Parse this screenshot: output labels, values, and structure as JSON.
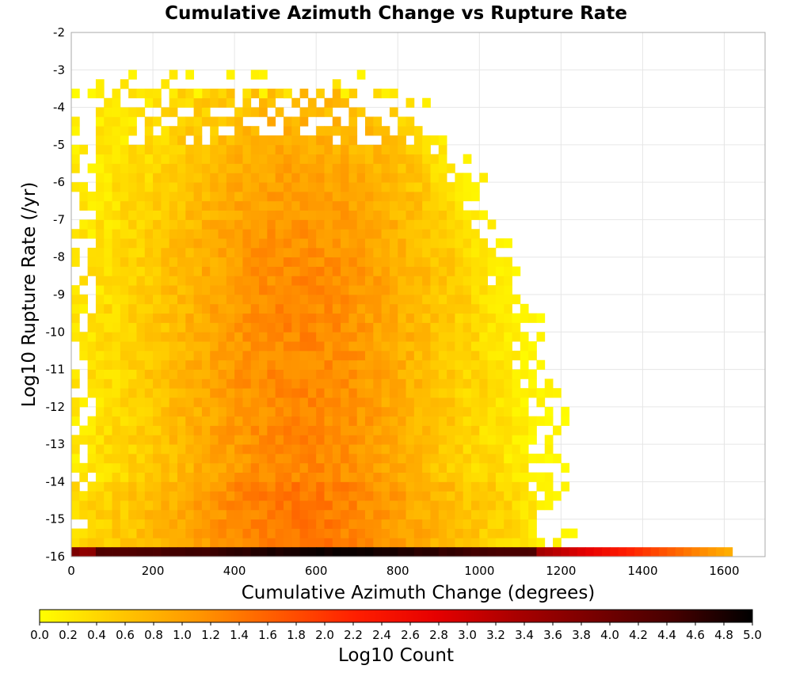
{
  "chart_data": {
    "type": "heatmap",
    "title": "Cumulative Azimuth Change vs Rupture Rate",
    "xlabel": "Cumulative Azimuth Change (degrees)",
    "ylabel": "Log10 Rupture Rate (/yr)",
    "xlim": [
      0,
      1700
    ],
    "ylim": [
      -16,
      -2
    ],
    "x_ticks": [
      "0",
      "200",
      "400",
      "600",
      "800",
      "1000",
      "1200",
      "1400",
      "1600"
    ],
    "y_ticks": [
      "-2",
      "-3",
      "-4",
      "-5",
      "-6",
      "-7",
      "-8",
      "-9",
      "-10",
      "-11",
      "-12",
      "-13",
      "-14",
      "-15",
      "-16"
    ],
    "grid": true,
    "bin_width_x": 20,
    "bin_height_y": 0.25,
    "colorbar": {
      "label": "Log10 Count",
      "range": [
        0,
        5
      ],
      "ticks": [
        "0.0",
        "0.2",
        "0.4",
        "0.6",
        "0.8",
        "1.0",
        "1.2",
        "1.4",
        "1.6",
        "1.8",
        "2.0",
        "2.2",
        "2.4",
        "2.6",
        "2.8",
        "3.0",
        "3.2",
        "3.4",
        "3.6",
        "3.8",
        "4.0",
        "4.2",
        "4.4",
        "4.6",
        "4.8",
        "5.0"
      ],
      "colors": [
        "#ffff00",
        "#ffc800",
        "#ff9600",
        "#ff5a00",
        "#ff1e00",
        "#e60000",
        "#aa0000",
        "#780000",
        "#460000",
        "#000000"
      ]
    },
    "density_summary": {
      "bulk_region": {
        "x_range": [
          0,
          1100
        ],
        "y_range": [
          -15.75,
          -3.75
        ],
        "log10_count_range": [
          0.0,
          1.6
        ],
        "peak_x": 560,
        "peak_y": -15.0
      },
      "bottom_row": {
        "y": -16,
        "x_range": [
          0,
          1620
        ],
        "log10_count_range": [
          0.8,
          5.0
        ],
        "peak_x_range": [
          400,
          900
        ]
      }
    }
  }
}
